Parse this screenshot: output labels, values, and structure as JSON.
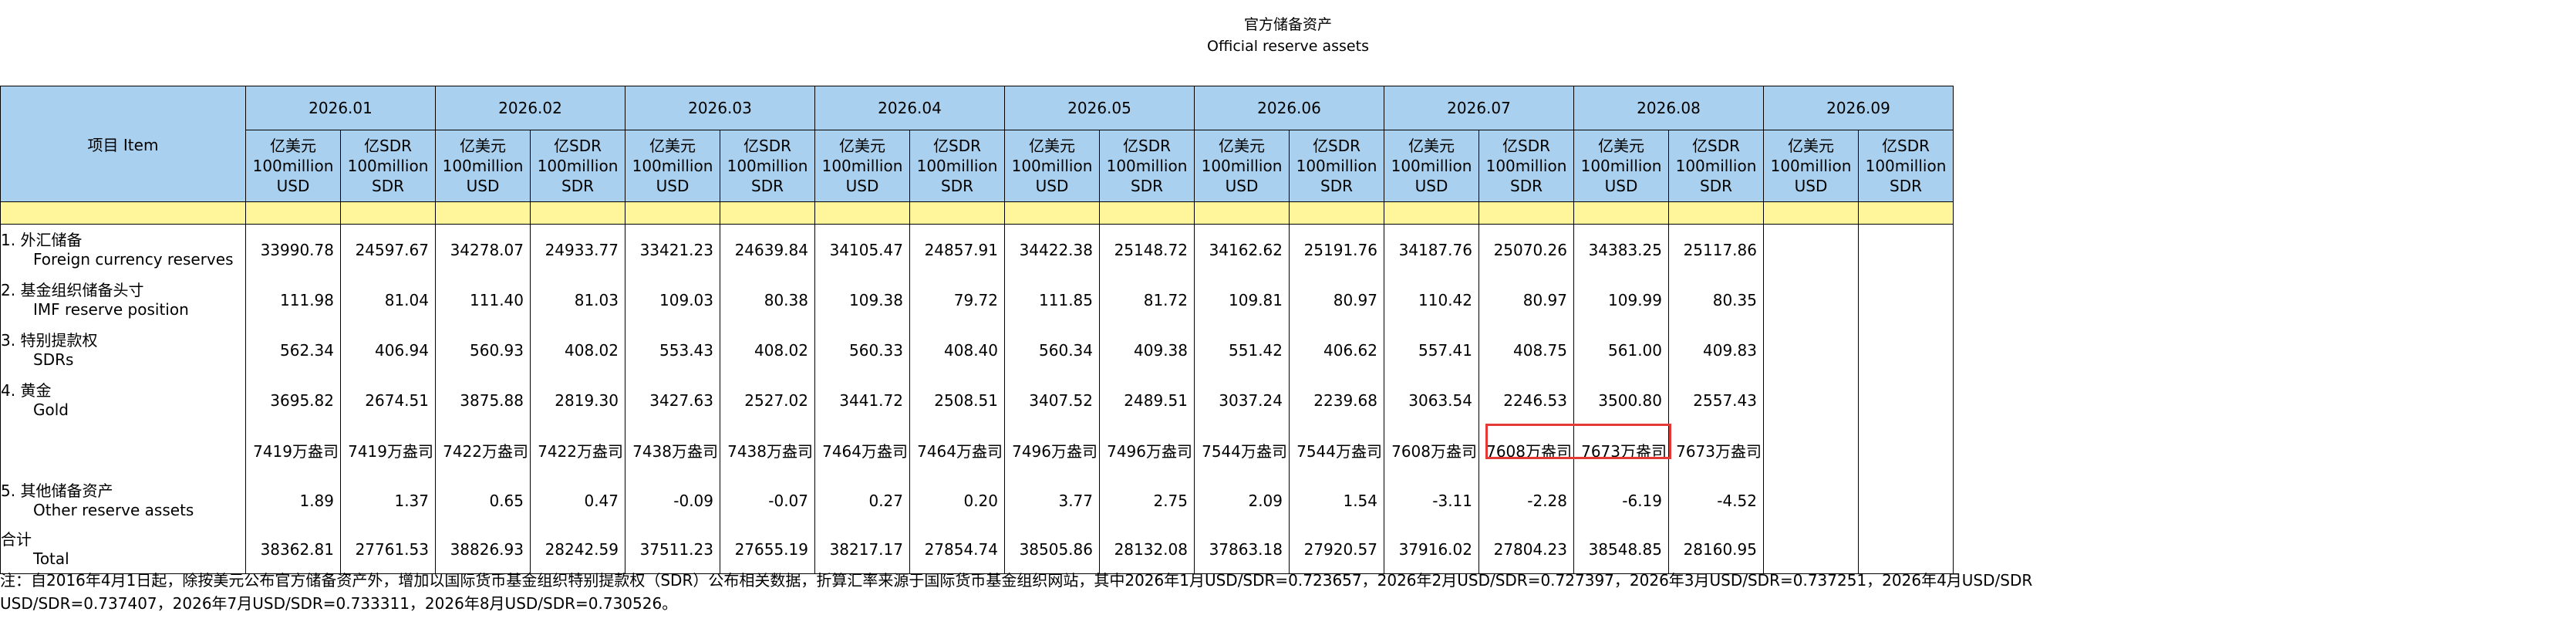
{
  "title": {
    "zh": "官方储备资产",
    "en": "Official reserve assets"
  },
  "item_header": "项目  Item",
  "months": [
    "2026.01",
    "2026.02",
    "2026.03",
    "2026.04",
    "2026.05",
    "2026.06",
    "2026.07",
    "2026.08",
    "2026.09"
  ],
  "unit_usd": [
    "亿美元",
    "100million",
    "USD"
  ],
  "unit_sdr": [
    "亿SDR",
    "100million",
    "SDR"
  ],
  "rows": [
    {
      "zh": "1. 外汇储备",
      "en": "Foreign currency reserves",
      "values": [
        "33990.78",
        "24597.67",
        "34278.07",
        "24933.77",
        "33421.23",
        "24639.84",
        "34105.47",
        "24857.91",
        "34422.38",
        "25148.72",
        "34162.62",
        "25191.76",
        "34187.76",
        "25070.26",
        "34383.25",
        "25117.86",
        "",
        ""
      ]
    },
    {
      "zh": "2. 基金组织储备头寸",
      "en": "IMF reserve position",
      "values": [
        "111.98",
        "81.04",
        "111.40",
        "81.03",
        "109.03",
        "80.38",
        "109.38",
        "79.72",
        "111.85",
        "81.72",
        "109.81",
        "80.97",
        "110.42",
        "80.97",
        "109.99",
        "80.35",
        "",
        ""
      ]
    },
    {
      "zh": "3. 特别提款权",
      "en": "SDRs",
      "values": [
        "562.34",
        "406.94",
        "560.93",
        "408.02",
        "553.43",
        "408.02",
        "560.33",
        "408.40",
        "560.34",
        "409.38",
        "551.42",
        "406.62",
        "557.41",
        "408.75",
        "561.00",
        "409.83",
        "",
        ""
      ]
    },
    {
      "zh": "4. 黄金",
      "en": "Gold",
      "values": [
        "3695.82",
        "2674.51",
        "3875.88",
        "2819.30",
        "3427.63",
        "2527.02",
        "3441.72",
        "2508.51",
        "3407.52",
        "2489.51",
        "3037.24",
        "2239.68",
        "3063.54",
        "2246.53",
        "3500.80",
        "2557.43",
        "",
        ""
      ]
    },
    {
      "zh": "",
      "en": "",
      "values": [
        "7419万盎司",
        "7419万盎司",
        "7422万盎司",
        "7422万盎司",
        "7438万盎司",
        "7438万盎司",
        "7464万盎司",
        "7464万盎司",
        "7496万盎司",
        "7496万盎司",
        "7544万盎司",
        "7544万盎司",
        "7608万盎司",
        "7608万盎司",
        "7673万盎司",
        "7673万盎司",
        "",
        ""
      ]
    },
    {
      "zh": "5. 其他储备资产",
      "en": "Other reserve assets",
      "values": [
        "1.89",
        "1.37",
        "0.65",
        "0.47",
        "-0.09",
        "-0.07",
        "0.27",
        "0.20",
        "3.77",
        "2.75",
        "2.09",
        "1.54",
        "-3.11",
        "-2.28",
        "-6.19",
        "-4.52",
        "",
        ""
      ]
    },
    {
      "zh": "  合计",
      "en": "Total",
      "values": [
        "38362.81",
        "27761.53",
        "38826.93",
        "28242.59",
        "37511.23",
        "27655.19",
        "38217.17",
        "27854.74",
        "38505.86",
        "28132.08",
        "37863.18",
        "27920.57",
        "37916.02",
        "27804.23",
        "38548.85",
        "28160.95",
        "",
        ""
      ]
    }
  ],
  "note": {
    "line1": "  注：自2016年4月1日起，除按美元公布官方储备资产外，增加以国际货币基金组织特别提款权（SDR）公布相关数据，折算汇率来源于国际货币基金组织网站，其中2026年1月USD/SDR=0.723657，2026年2月USD/SDR=0.727397，2026年3月USD/SDR=0.737251，2026年4月USD/SDR",
    "line2": "USD/SDR=0.737407，2026年7月USD/SDR=0.733311，2026年8月USD/SDR=0.730526。"
  },
  "colors": {
    "header_bg": "#a9d1ef",
    "band_bg": "#fff59a",
    "highlight": "#e53935"
  }
}
